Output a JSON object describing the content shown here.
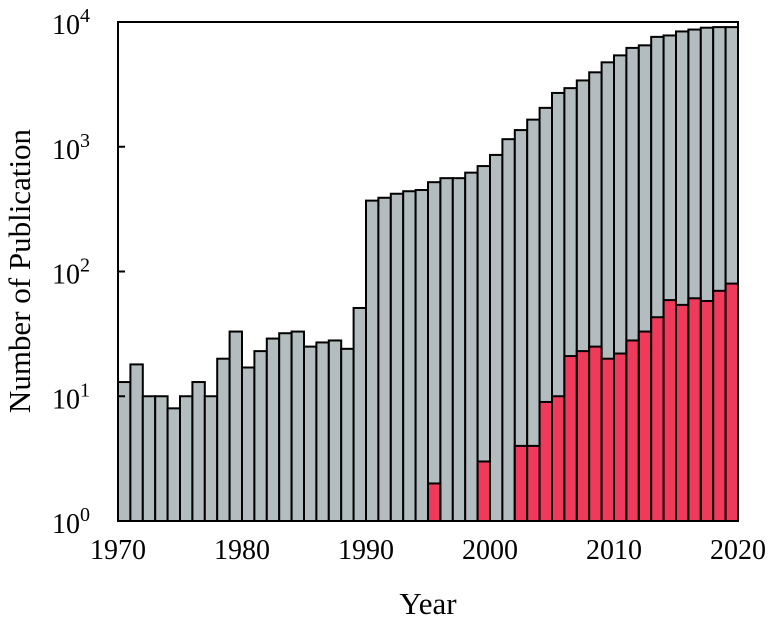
{
  "chart_data": {
    "type": "bar",
    "layout": "overlaid",
    "x_scale": "linear",
    "y_scale": "log",
    "xlim": [
      1970,
      2020
    ],
    "ylim": [
      1,
      10000
    ],
    "xlabel": "Year",
    "ylabel": "Number of Publication",
    "x_ticks": [
      {
        "value": 1970,
        "label": "1970"
      },
      {
        "value": 1980,
        "label": "1980"
      },
      {
        "value": 1990,
        "label": "1990"
      },
      {
        "value": 2000,
        "label": "2000"
      },
      {
        "value": 2010,
        "label": "2010"
      },
      {
        "value": 2020,
        "label": "2020"
      }
    ],
    "y_ticks": [
      {
        "value": 1,
        "base": "10",
        "exp": "0"
      },
      {
        "value": 10,
        "base": "10",
        "exp": "1"
      },
      {
        "value": 100,
        "base": "10",
        "exp": "2"
      },
      {
        "value": 1000,
        "base": "10",
        "exp": "3"
      },
      {
        "value": 10000,
        "base": "10",
        "exp": "4"
      }
    ],
    "grid": false,
    "legend": "none",
    "x": [
      1970,
      1971,
      1972,
      1973,
      1974,
      1975,
      1976,
      1977,
      1978,
      1979,
      1980,
      1981,
      1982,
      1983,
      1984,
      1985,
      1986,
      1987,
      1988,
      1989,
      1990,
      1991,
      1992,
      1993,
      1994,
      1995,
      1996,
      1997,
      1998,
      1999,
      2000,
      2001,
      2002,
      2003,
      2004,
      2005,
      2006,
      2007,
      2008,
      2009,
      2010,
      2011,
      2012,
      2013,
      2014,
      2015,
      2016,
      2017,
      2018,
      2019
    ],
    "series": [
      {
        "color": "#b3bcbe",
        "values": [
          13,
          18,
          10,
          10,
          8,
          10,
          13,
          10,
          20,
          33,
          17,
          23,
          29,
          32,
          33,
          25,
          27,
          28,
          24,
          51,
          370,
          390,
          420,
          440,
          450,
          520,
          560,
          560,
          620,
          700,
          860,
          1150,
          1360,
          1650,
          2050,
          2700,
          2950,
          3400,
          3950,
          4750,
          5400,
          6200,
          6500,
          7600,
          7800,
          8400,
          8700,
          9000,
          9100,
          9100
        ]
      },
      {
        "color": "#f03a5c",
        "values": [
          null,
          null,
          null,
          null,
          null,
          null,
          null,
          null,
          null,
          null,
          null,
          null,
          null,
          null,
          null,
          null,
          null,
          null,
          null,
          null,
          null,
          null,
          null,
          null,
          null,
          2,
          null,
          null,
          null,
          3,
          null,
          null,
          4,
          4,
          9,
          10,
          21,
          23,
          25,
          20,
          22,
          28,
          33,
          43,
          59,
          54,
          61,
          58,
          70,
          80
        ]
      }
    ]
  }
}
